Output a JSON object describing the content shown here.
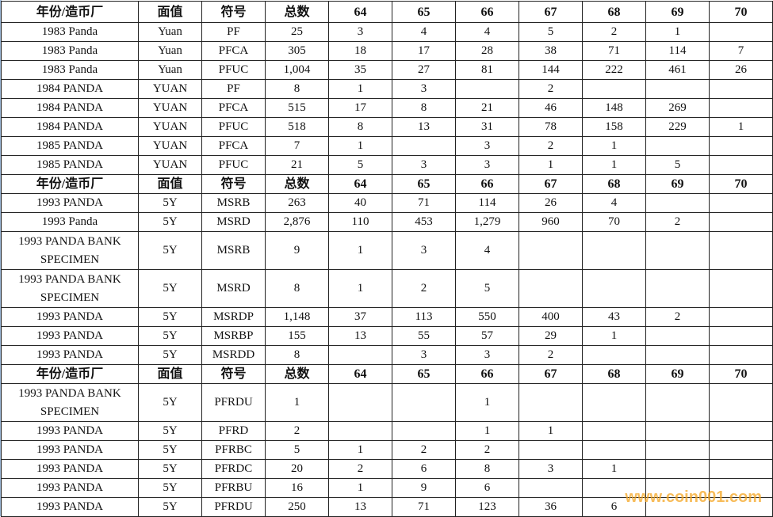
{
  "header": [
    "年份/造币厂",
    "面值",
    "符号",
    "总数",
    "64",
    "65",
    "66",
    "67",
    "68",
    "69",
    "70"
  ],
  "sections": [
    {
      "rows": [
        [
          "1983 Panda",
          "Yuan",
          "PF",
          "25",
          "3",
          "4",
          "4",
          "5",
          "2",
          "1",
          ""
        ],
        [
          "1983 Panda",
          "Yuan",
          "PFCA",
          "305",
          "18",
          "17",
          "28",
          "38",
          "71",
          "114",
          "7"
        ],
        [
          "1983 Panda",
          "Yuan",
          "PFUC",
          "1,004",
          "35",
          "27",
          "81",
          "144",
          "222",
          "461",
          "26"
        ],
        [
          "1984 PANDA",
          "YUAN",
          "PF",
          "8",
          "1",
          "3",
          "",
          "2",
          "",
          "",
          ""
        ],
        [
          "1984 PANDA",
          "YUAN",
          "PFCA",
          "515",
          "17",
          "8",
          "21",
          "46",
          "148",
          "269",
          ""
        ],
        [
          "1984 PANDA",
          "YUAN",
          "PFUC",
          "518",
          "8",
          "13",
          "31",
          "78",
          "158",
          "229",
          "1"
        ],
        [
          "1985 PANDA",
          "YUAN",
          "PFCA",
          "7",
          "1",
          "",
          "3",
          "2",
          "1",
          "",
          ""
        ],
        [
          "1985 PANDA",
          "YUAN",
          "PFUC",
          "21",
          "5",
          "3",
          "3",
          "1",
          "1",
          "5",
          ""
        ]
      ]
    },
    {
      "rows": [
        [
          "1993 PANDA",
          "5Y",
          "MSRB",
          "263",
          "40",
          "71",
          "114",
          "26",
          "4",
          "",
          ""
        ],
        [
          "1993 Panda",
          "5Y",
          "MSRD",
          "2,876",
          "110",
          "453",
          "1,279",
          "960",
          "70",
          "2",
          ""
        ],
        [
          "1993 PANDA BANK SPECIMEN",
          "5Y",
          "MSRB",
          "9",
          "1",
          "3",
          "4",
          "",
          "",
          "",
          ""
        ],
        [
          "1993 PANDA BANK SPECIMEN",
          "5Y",
          "MSRD",
          "8",
          "1",
          "2",
          "5",
          "",
          "",
          "",
          ""
        ],
        [
          "1993 PANDA",
          "5Y",
          "MSRDP",
          "1,148",
          "37",
          "113",
          "550",
          "400",
          "43",
          "2",
          ""
        ],
        [
          "1993 PANDA",
          "5Y",
          "MSRBP",
          "155",
          "13",
          "55",
          "57",
          "29",
          "1",
          "",
          ""
        ],
        [
          "1993 PANDA",
          "5Y",
          "MSRDD",
          "8",
          "",
          "3",
          "3",
          "2",
          "",
          "",
          ""
        ]
      ]
    },
    {
      "rows": [
        [
          "1993 PANDA BANK SPECIMEN",
          "5Y",
          "PFRDU",
          "1",
          "",
          "",
          "1",
          "",
          "",
          "",
          ""
        ],
        [
          "1993 PANDA",
          "5Y",
          "PFRD",
          "2",
          "",
          "",
          "1",
          "1",
          "",
          "",
          ""
        ],
        [
          "1993 PANDA",
          "5Y",
          "PFRBC",
          "5",
          "1",
          "2",
          "2",
          "",
          "",
          "",
          ""
        ],
        [
          "1993 PANDA",
          "5Y",
          "PFRDC",
          "20",
          "2",
          "6",
          "8",
          "3",
          "1",
          "",
          ""
        ],
        [
          "1993 PANDA",
          "5Y",
          "PFRBU",
          "16",
          "1",
          "9",
          "6",
          "",
          "",
          "",
          ""
        ],
        [
          "1993 PANDA",
          "5Y",
          "PFRDU",
          "250",
          "13",
          "71",
          "123",
          "36",
          "6",
          "",
          ""
        ]
      ]
    }
  ],
  "watermark": "www.coin001.com",
  "colors": {
    "watermark": "#f5a623",
    "grid": "#222222"
  }
}
